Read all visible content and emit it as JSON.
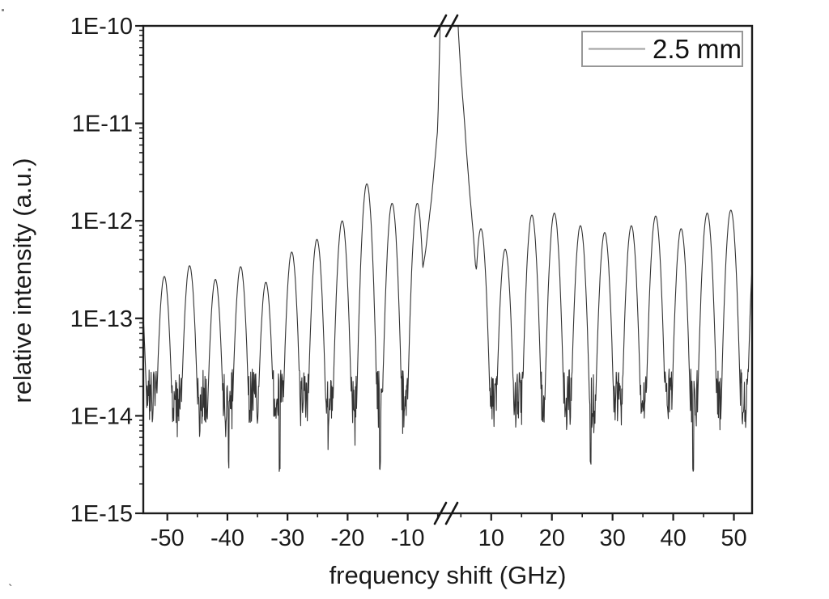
{
  "figure": {
    "background": "#ffffff",
    "colors": {
      "frame": "#1c1c1c",
      "curve": "#333333",
      "text": "#1a1a1a",
      "legend_border": "#979797",
      "legend_sample": "#a8a8a8"
    },
    "legend": {
      "label": "2.5 mm"
    },
    "stray_marks": {
      "bottom_left": "`"
    }
  },
  "chart_data": {
    "type": "line",
    "title": "",
    "xlabel": "frequency shift (GHz)",
    "ylabel": "relative intensity (a.u.)",
    "grid": false,
    "y_scale": "log",
    "legend_position": "top-right",
    "legend_entries": [
      "2.5 mm"
    ],
    "ylim": [
      "1E-15",
      "1E-10"
    ],
    "y_tick_labels": [
      "1E-10",
      "1E-11",
      "1E-12",
      "1E-13",
      "1E-14",
      "1E-15"
    ],
    "y_tick_logs": [
      -10,
      -11,
      -12,
      -13,
      -14,
      -15
    ],
    "x_axis_break": {
      "from": -5,
      "to": 5
    },
    "xlim_left_segment": [
      -54,
      -5
    ],
    "xlim_right_segment": [
      5,
      53
    ],
    "x_major_ticks": [
      -50,
      -40,
      -30,
      -20,
      -10,
      10,
      20,
      30,
      40,
      50
    ],
    "x_minor_ticks": [
      -45,
      -35,
      -25,
      -15,
      -5,
      5,
      15,
      25,
      35,
      45
    ],
    "series": [
      {
        "name": "2.5 mm",
        "color": "#333333",
        "description": "Frequency-comb spectrum: periodic peaks (~4.2 GHz spacing) above a noisy floor, with a strong carrier peak at 0 GHz that is clipped above 1E-10 and passes through the axis break.",
        "comb_spacing_ghz": 4.2,
        "comb_halfwidth_ghz_per_decade": 1.12,
        "comb_peaks_f_log10": [
          [
            -54.7,
            -12.6
          ],
          [
            -50.5,
            -12.57
          ],
          [
            -46.3,
            -12.46
          ],
          [
            -42.0,
            -12.6
          ],
          [
            -37.8,
            -12.47
          ],
          [
            -33.6,
            -12.63
          ],
          [
            -29.3,
            -12.32
          ],
          [
            -25.1,
            -12.19
          ],
          [
            -20.9,
            -12.0
          ],
          [
            -16.8,
            -11.62
          ],
          [
            -12.6,
            -11.82
          ],
          [
            -8.4,
            -11.82
          ],
          [
            8.3,
            -12.08
          ],
          [
            12.3,
            -12.29
          ],
          [
            16.7,
            -11.94
          ],
          [
            20.4,
            -11.92
          ],
          [
            24.7,
            -12.05
          ],
          [
            28.7,
            -12.12
          ],
          [
            33.1,
            -12.05
          ],
          [
            37.1,
            -11.95
          ],
          [
            41.3,
            -12.08
          ],
          [
            45.6,
            -11.92
          ],
          [
            49.5,
            -11.89
          ],
          [
            53.8,
            -11.95
          ]
        ],
        "central_peak_profile_f_log10": [
          [
            -7.8,
            -12.6
          ],
          [
            -7.3,
            -12.42
          ],
          [
            -7.0,
            -12.3
          ],
          [
            -6.5,
            -12.02
          ],
          [
            -6.0,
            -11.75
          ],
          [
            -5.5,
            -11.4
          ],
          [
            -5.0,
            -11.05
          ],
          [
            -4.5,
            -10.55
          ],
          [
            -4.0,
            -10.0
          ],
          [
            -3.5,
            -9.45
          ],
          [
            -3.0,
            -8.85
          ],
          [
            -2.0,
            -8.2
          ],
          [
            -1.0,
            -7.9
          ],
          [
            0.0,
            -7.8
          ],
          [
            1.0,
            -7.9
          ],
          [
            2.0,
            -8.25
          ],
          [
            3.0,
            -8.8
          ],
          [
            3.5,
            -9.4
          ],
          [
            3.8,
            -10.0
          ],
          [
            4.5,
            -10.3
          ],
          [
            5.0,
            -10.5
          ],
          [
            5.5,
            -10.9
          ],
          [
            6.0,
            -11.35
          ],
          [
            6.5,
            -11.75
          ],
          [
            7.0,
            -12.1
          ],
          [
            7.4,
            -12.45
          ],
          [
            7.7,
            -12.55
          ]
        ],
        "noise_floor_log10_range": [
          -14.12,
          -13.52
        ],
        "deep_dropouts_f": [
          -39.8,
          -31.3,
          -14.6,
          26.4,
          43.3
        ],
        "deep_dropout_log10": -14.45
      }
    ]
  }
}
